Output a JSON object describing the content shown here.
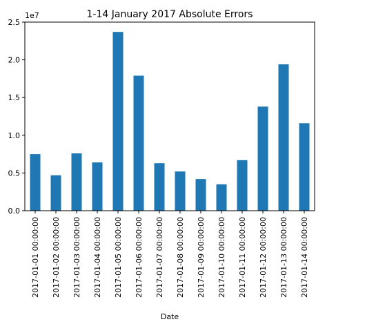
{
  "chart_data": {
    "type": "bar",
    "title": "1-14 January 2017 Absolute Errors",
    "xlabel": "Date",
    "ylabel": "",
    "y_offset_label": "1e7",
    "categories": [
      "2017-01-01 00:00:00",
      "2017-01-02 00:00:00",
      "2017-01-03 00:00:00",
      "2017-01-04 00:00:00",
      "2017-01-05 00:00:00",
      "2017-01-06 00:00:00",
      "2017-01-07 00:00:00",
      "2017-01-08 00:00:00",
      "2017-01-09 00:00:00",
      "2017-01-10 00:00:00",
      "2017-01-11 00:00:00",
      "2017-01-12 00:00:00",
      "2017-01-13 00:00:00",
      "2017-01-14 00:00:00"
    ],
    "values": [
      7500000,
      4700000,
      7600000,
      6400000,
      23700000,
      17900000,
      6300000,
      5200000,
      4200000,
      3500000,
      6700000,
      13800000,
      19400000,
      11600000
    ],
    "ylim": [
      0,
      25000000
    ],
    "yticks": [
      0,
      5000000,
      10000000,
      15000000,
      20000000,
      25000000
    ],
    "ytick_labels": [
      "0.0",
      "0.5",
      "1.0",
      "1.5",
      "2.0",
      "2.5"
    ],
    "bar_color": "#1f77b4",
    "grid": false,
    "legend": false
  }
}
